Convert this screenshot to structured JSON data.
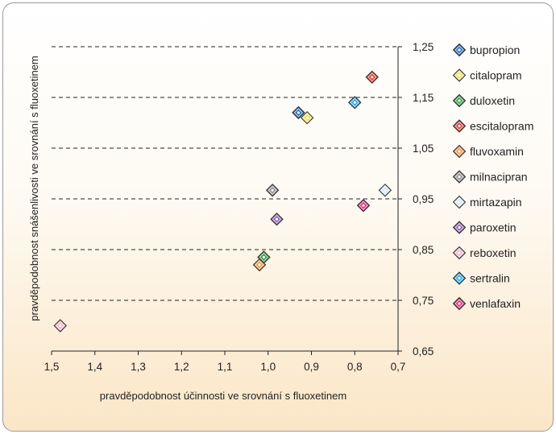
{
  "chart_data": {
    "type": "scatter",
    "title": "",
    "xlabel": "pravděpodobnost účinnosti ve srovnání s fluoxetinem",
    "ylabel": "pravděpodobnost snášenlivosti ve srovnání s fluoxetinem",
    "x_reversed": true,
    "xlim": [
      1.5,
      0.7
    ],
    "ylim": [
      0.65,
      1.25
    ],
    "xticks": [
      "1,5",
      "1,4",
      "1,3",
      "1,2",
      "1,1",
      "1,0",
      "0,9",
      "0,8",
      "0,7"
    ],
    "yticks": [
      "1,25",
      "1,15",
      "1,05",
      "0,95",
      "0,85",
      "0,75",
      "0,65"
    ],
    "grid": "horizontal dashed",
    "legend_position": "right",
    "series": [
      {
        "name": "bupropion",
        "x": 0.93,
        "y": 1.12,
        "color": "#2a6ebb"
      },
      {
        "name": "citalopram",
        "x": 0.91,
        "y": 1.11,
        "color": "#f0e060"
      },
      {
        "name": "duloxetin",
        "x": 1.01,
        "y": 0.835,
        "color": "#3e9a4a"
      },
      {
        "name": "escitalopram",
        "x": 0.76,
        "y": 1.19,
        "color": "#d6403a"
      },
      {
        "name": "fluvoxamin",
        "x": 1.02,
        "y": 0.82,
        "color": "#e8964a"
      },
      {
        "name": "milnacipran",
        "x": 0.99,
        "y": 0.967,
        "color": "#8f8f8f"
      },
      {
        "name": "mirtazapin",
        "x": 0.73,
        "y": 0.967,
        "color": "#d4e6f2"
      },
      {
        "name": "paroxetin",
        "x": 0.98,
        "y": 0.91,
        "color": "#9064b4"
      },
      {
        "name": "reboxetin",
        "x": 1.48,
        "y": 0.7,
        "color": "#f0b6cc"
      },
      {
        "name": "sertralin",
        "x": 0.8,
        "y": 1.14,
        "color": "#2fa6de"
      },
      {
        "name": "venlafaxin",
        "x": 0.78,
        "y": 0.937,
        "color": "#d8307a"
      }
    ]
  }
}
